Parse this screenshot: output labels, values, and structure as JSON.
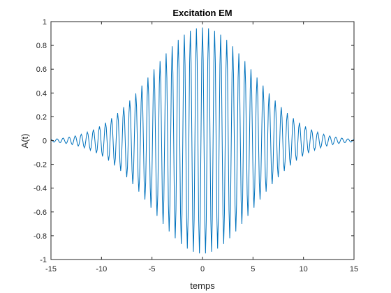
{
  "chart_data": {
    "type": "line",
    "title": "Excitation EM",
    "xlabel": "temps",
    "ylabel": "A(t)",
    "xlim": [
      -15,
      15
    ],
    "ylim": [
      -1,
      1
    ],
    "xticks": [
      -15,
      -10,
      -5,
      0,
      5,
      10,
      15
    ],
    "yticks": [
      -1,
      -0.8,
      -0.6,
      -0.4,
      -0.2,
      0,
      0.2,
      0.4,
      0.6,
      0.8,
      1
    ],
    "xtick_labels": [
      "-15",
      "-10",
      "-5",
      "0",
      "5",
      "10",
      "15"
    ],
    "ytick_labels": [
      "-1",
      "-0.8",
      "-0.6",
      "-0.4",
      "-0.2",
      "0",
      "0.2",
      "0.4",
      "0.6",
      "0.8",
      "1"
    ],
    "grid": false,
    "line_color": "#0072BD",
    "series": [
      {
        "signal": "Gaussian-enveloped oscillation",
        "peak_amplitude": 0.95,
        "envelope_sigma": 5.0,
        "oscillation_period": 0.6,
        "x_start": -15,
        "x_end": 15,
        "samples": 400
      }
    ]
  }
}
